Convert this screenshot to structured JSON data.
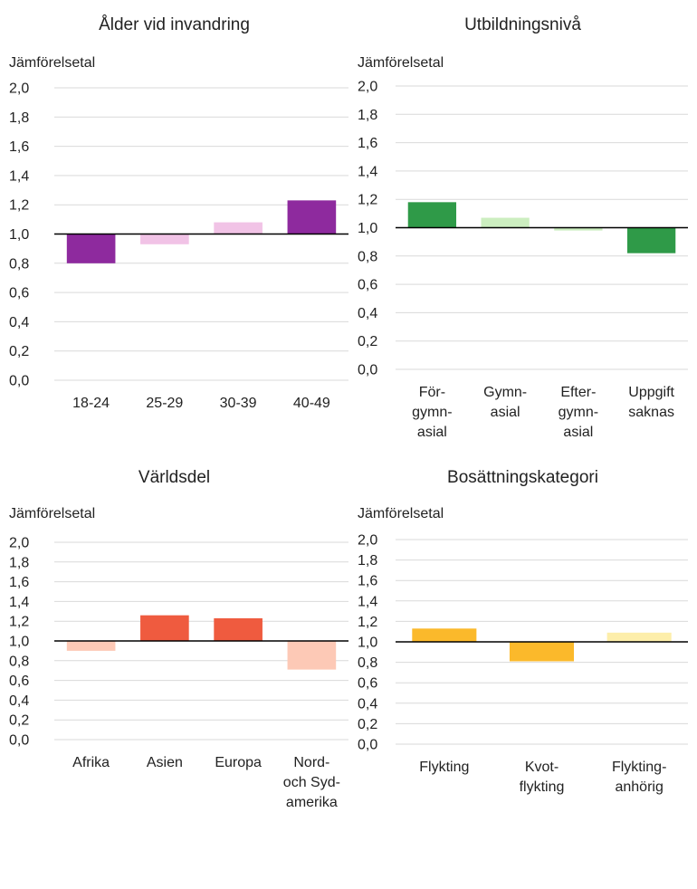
{
  "chart_data": [
    {
      "type": "bar",
      "title": "Ålder vid invandring",
      "ylabel": "Jämförelsetal",
      "yticks": [
        "0,0",
        "0,2",
        "0,4",
        "0,6",
        "0,8",
        "1,0",
        "1,2",
        "1,4",
        "1,6",
        "1,8",
        "2,0"
      ],
      "ylim": [
        0,
        2
      ],
      "baseline": 1.0,
      "grid": true,
      "categories": [
        [
          "18-24"
        ],
        [
          "25-29"
        ],
        [
          "30-39"
        ],
        [
          "40-49"
        ]
      ],
      "values": [
        0.8,
        0.93,
        1.08,
        1.23
      ],
      "colors": [
        "#8e2a9e",
        "#f1c3e6",
        "#f1c3e6",
        "#8e2a9e"
      ]
    },
    {
      "type": "bar",
      "title": "Utbildningsnivå",
      "ylabel": "Jämförelsetal",
      "yticks": [
        "0,0",
        "0,2",
        "0,4",
        "0,6",
        "0,8",
        "1,0",
        "1,2",
        "1,4",
        "1,6",
        "1,8",
        "2,0"
      ],
      "ylim": [
        0,
        2
      ],
      "baseline": 1.0,
      "grid": true,
      "categories": [
        [
          "För-",
          "gymn-",
          "asial"
        ],
        [
          "Gymn-",
          "asial"
        ],
        [
          "Efter-",
          "gymn-",
          "asial"
        ],
        [
          "Uppgift",
          "saknas"
        ]
      ],
      "values": [
        1.18,
        1.07,
        0.98,
        0.82
      ],
      "colors": [
        "#2f9a48",
        "#cceec0",
        "#cceec0",
        "#2f9a48"
      ]
    },
    {
      "type": "bar",
      "title": "Världsdel",
      "ylabel": "Jämförelsetal",
      "yticks": [
        "0,0",
        "0,2",
        "0,4",
        "0,6",
        "0,8",
        "1,0",
        "1,2",
        "1,4",
        "1,6",
        "1,8",
        "2,0"
      ],
      "ylim": [
        0,
        2
      ],
      "baseline": 1.0,
      "grid": true,
      "categories": [
        [
          "Afrika"
        ],
        [
          "Asien"
        ],
        [
          "Europa"
        ],
        [
          "Nord-",
          "och Syd-",
          "amerika"
        ]
      ],
      "values": [
        0.9,
        1.26,
        1.23,
        0.71
      ],
      "colors": [
        "#fdc9b6",
        "#ef5b3f",
        "#ef5b3f",
        "#fdc9b6"
      ]
    },
    {
      "type": "bar",
      "title": "Bosättningskategori",
      "ylabel": "Jämförelsetal",
      "yticks": [
        "0,0",
        "0,2",
        "0,4",
        "0,6",
        "0,8",
        "1,0",
        "1,2",
        "1,4",
        "1,6",
        "1,8",
        "2,0"
      ],
      "ylim": [
        0,
        2
      ],
      "baseline": 1.0,
      "grid": true,
      "categories": [
        [
          "Flykting"
        ],
        [
          "Kvot-",
          "flykting"
        ],
        [
          "Flykting-",
          "anhörig"
        ]
      ],
      "values": [
        1.13,
        0.81,
        1.09
      ],
      "colors": [
        "#fbb92b",
        "#fbb92b",
        "#fdeeaa"
      ]
    }
  ]
}
